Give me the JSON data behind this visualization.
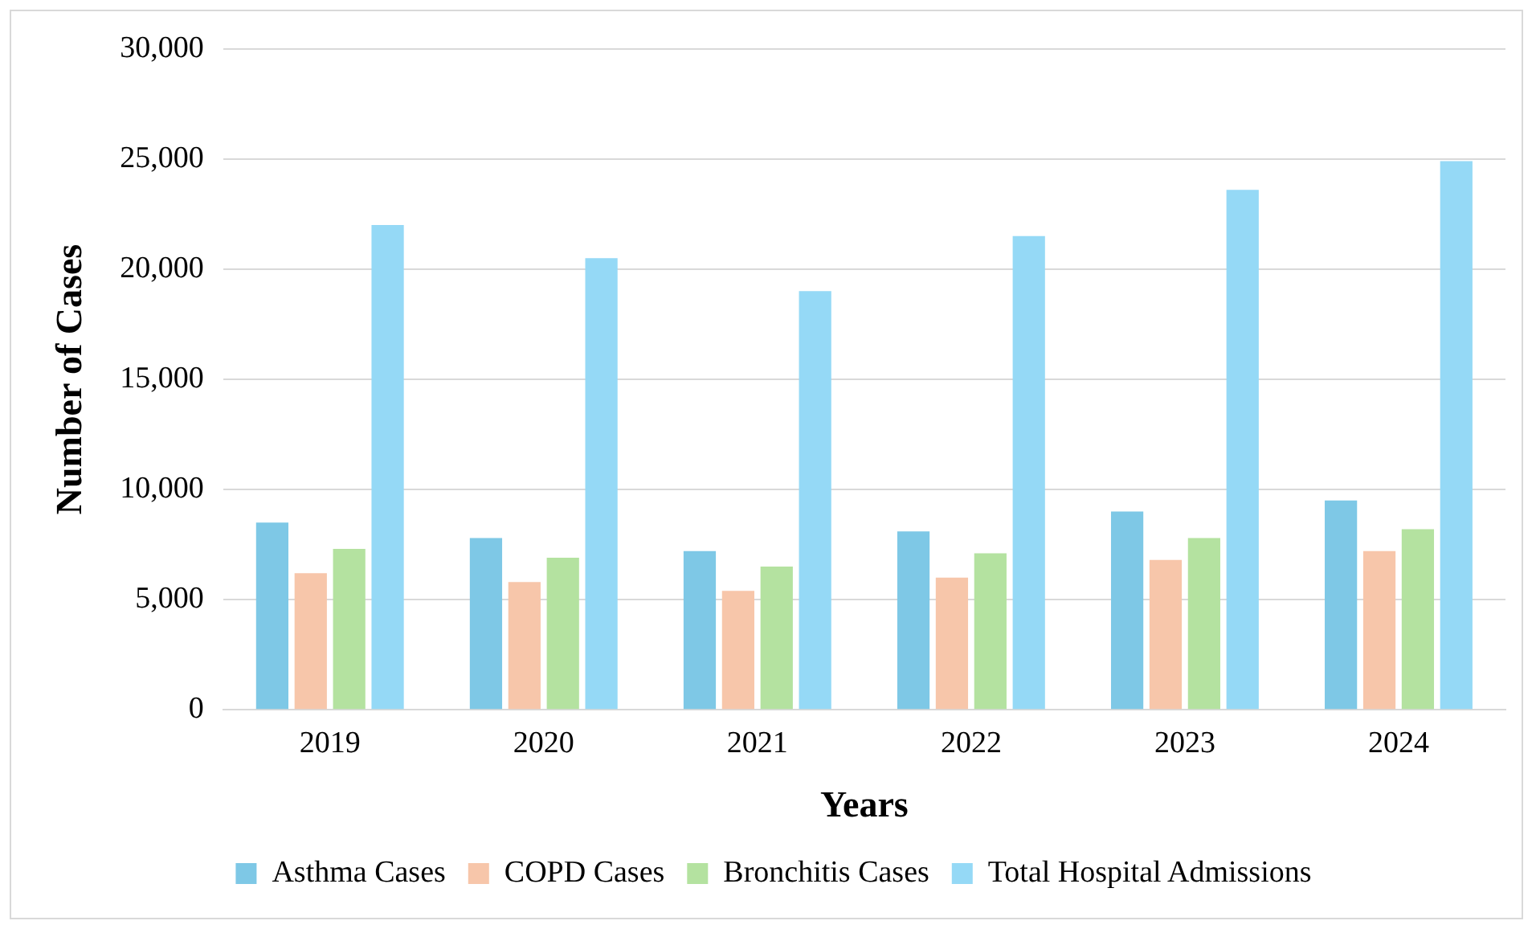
{
  "chart_data": {
    "type": "bar",
    "xlabel": "Years",
    "ylabel": "Number of Cases",
    "categories": [
      "2019",
      "2020",
      "2021",
      "2022",
      "2023",
      "2024"
    ],
    "series": [
      {
        "name": "Asthma Cases",
        "color": "#7ec8e6",
        "values": [
          8500,
          7800,
          7200,
          8100,
          9000,
          9500
        ]
      },
      {
        "name": "COPD Cases",
        "color": "#f7c6aa",
        "values": [
          6200,
          5800,
          5400,
          6000,
          6800,
          7200
        ]
      },
      {
        "name": "Bronchitis Cases",
        "color": "#b4e2a0",
        "values": [
          7300,
          6900,
          6500,
          7100,
          7800,
          8200
        ]
      },
      {
        "name": "Total Hospital Admissions",
        "color": "#95d9f6",
        "values": [
          22000,
          20500,
          19000,
          21500,
          23600,
          24900
        ]
      }
    ],
    "ylim": [
      0,
      30000
    ],
    "yticks": [
      0,
      {
        "value": 5000,
        "label": "5,000"
      },
      {
        "value": 10000,
        "label": "10,000"
      },
      {
        "value": 15000,
        "label": "15,000"
      },
      {
        "value": 20000,
        "label": "20,000"
      },
      {
        "value": 25000,
        "label": "25,000"
      },
      {
        "value": 30000,
        "label": "30,000"
      }
    ],
    "grid": "y",
    "legend": "bottom"
  }
}
